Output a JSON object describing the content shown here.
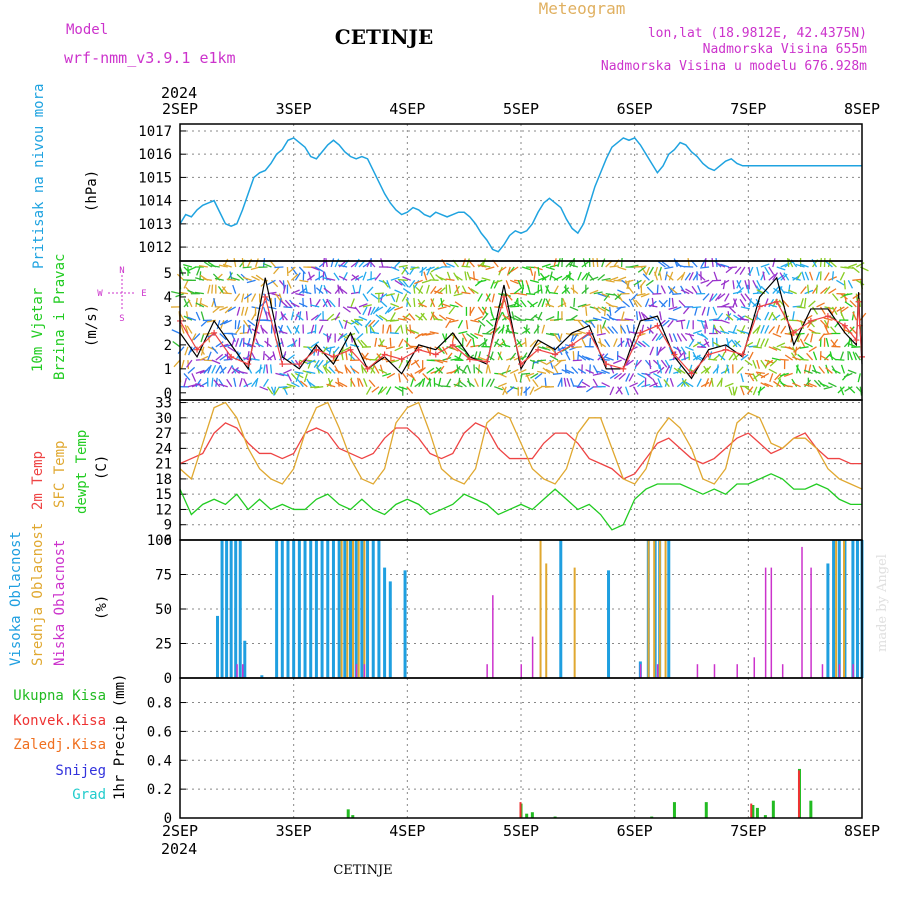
{
  "header": {
    "model_label": "Model",
    "model_name": "wrf-nmm_v3.9.1 e1km",
    "station": "CETINJE",
    "meteogram": "Meteogram",
    "lonlat": "lon,lat (18.9812E, 42.4375N)",
    "elevation": "Nadmorska Visina 655m",
    "elevation_model": "Nadmorska Visina u modelu 676.928m",
    "year_top": "2024",
    "year_bottom": "2024",
    "footer_station": "CETINJE",
    "credit": "made by Angel"
  },
  "colors": {
    "pressure": "#1fa3e0",
    "wind_green": "#22cc22",
    "temp_red": "#ee4444",
    "temp_orange": "#e0a830",
    "dewpt_green": "#22cc22",
    "high_cloud": "#1f9fe0",
    "mid_cloud": "#e0a830",
    "low_cloud": "#cc33cc",
    "total_precip": "#22bb22",
    "conv_precip": "#ee3333",
    "frozen_precip": "#f07020",
    "snow": "#3333dd",
    "hail": "#22cccc",
    "wind_compass": "#cc33cc"
  },
  "chart_data": [
    {
      "id": "pressure",
      "type": "line",
      "ylabel_color": "Pritisak na nivou mora",
      "ylabel_unit": "(hPa)",
      "x_categories": [
        "2SEP",
        "3SEP",
        "4SEP",
        "5SEP",
        "6SEP",
        "7SEP",
        "8SEP"
      ],
      "xlim": [
        0,
        6
      ],
      "ylim": [
        1011.4,
        1017.3
      ],
      "yticks": [
        1012,
        1013,
        1014,
        1015,
        1016,
        1017
      ],
      "x": [
        0.0,
        0.05,
        0.1,
        0.15,
        0.2,
        0.25,
        0.3,
        0.35,
        0.4,
        0.45,
        0.5,
        0.55,
        0.6,
        0.65,
        0.7,
        0.75,
        0.8,
        0.85,
        0.9,
        0.95,
        1.0,
        1.05,
        1.1,
        1.15,
        1.2,
        1.25,
        1.3,
        1.35,
        1.4,
        1.45,
        1.5,
        1.55,
        1.6,
        1.65,
        1.7,
        1.75,
        1.8,
        1.85,
        1.9,
        1.95,
        2.0,
        2.05,
        2.1,
        2.15,
        2.2,
        2.25,
        2.3,
        2.35,
        2.4,
        2.45,
        2.5,
        2.55,
        2.6,
        2.65,
        2.7,
        2.75,
        2.8,
        2.85,
        2.9,
        2.95,
        3.0,
        3.05,
        3.1,
        3.15,
        3.2,
        3.25,
        3.3,
        3.35,
        3.4,
        3.45,
        3.5,
        3.55,
        3.6,
        3.65,
        3.7,
        3.75,
        3.8,
        3.85,
        3.9,
        3.95,
        4.0,
        4.05,
        4.1,
        4.15,
        4.2,
        4.25,
        4.3,
        4.35,
        4.4,
        4.45,
        4.5,
        4.55,
        4.6,
        4.65,
        4.7,
        4.75,
        4.8,
        4.85,
        4.9,
        4.95,
        5.0,
        5.05,
        5.1,
        5.15,
        5.2,
        5.25,
        5.3,
        5.35,
        5.4,
        5.45,
        5.5,
        5.55,
        5.6,
        5.65,
        5.7,
        5.75,
        5.8,
        5.85,
        5.9,
        5.95,
        6.0
      ],
      "values": [
        1013.0,
        1013.4,
        1013.3,
        1013.6,
        1013.8,
        1013.9,
        1014.0,
        1013.5,
        1013.0,
        1012.9,
        1013.0,
        1013.6,
        1014.3,
        1015.0,
        1015.2,
        1015.3,
        1015.6,
        1016.0,
        1016.2,
        1016.6,
        1016.7,
        1016.5,
        1016.3,
        1015.9,
        1015.8,
        1016.1,
        1016.4,
        1016.6,
        1016.4,
        1016.1,
        1015.9,
        1015.8,
        1015.9,
        1015.8,
        1015.3,
        1014.8,
        1014.3,
        1013.9,
        1013.6,
        1013.4,
        1013.5,
        1013.7,
        1013.6,
        1013.4,
        1013.3,
        1013.5,
        1013.4,
        1013.3,
        1013.4,
        1013.5,
        1013.5,
        1013.3,
        1013.0,
        1012.6,
        1012.3,
        1011.9,
        1011.8,
        1012.1,
        1012.5,
        1012.7,
        1012.6,
        1012.7,
        1013.0,
        1013.5,
        1013.9,
        1014.1,
        1013.9,
        1013.7,
        1013.2,
        1012.8,
        1012.6,
        1013.0,
        1013.8,
        1014.6,
        1015.2,
        1015.8,
        1016.3,
        1016.5,
        1016.7,
        1016.6,
        1016.7,
        1016.4,
        1016.0,
        1015.6,
        1015.2,
        1015.5,
        1016.0,
        1016.2,
        1016.5,
        1016.4,
        1016.1,
        1015.9,
        1015.6,
        1015.4,
        1015.3,
        1015.5,
        1015.7,
        1015.8,
        1015.6,
        1015.5,
        1015.5,
        1015.5,
        1015.5,
        1015.5,
        1015.5,
        1015.5,
        1015.5,
        1015.5,
        1015.5,
        1015.5,
        1015.5,
        1015.5,
        1015.5,
        1015.5,
        1015.5,
        1015.5,
        1015.5,
        1015.5,
        1015.5,
        1015.5,
        1015.5
      ]
    },
    {
      "id": "wind",
      "type": "line",
      "ylabel_color": "10m Vjetar",
      "ylabel_color2": "Brzina i Pravac",
      "ylabel_unit": "(m/s)",
      "compass": "N S W E",
      "ylim": [
        -0.3,
        5.5
      ],
      "yticks": [
        0,
        1,
        2,
        3,
        4,
        5
      ],
      "series": [
        {
          "label_key": "black",
          "values": [
            2.5,
            1.5,
            3.0,
            2.0,
            1.0,
            4.8,
            1.5,
            1.0,
            2.0,
            1.2,
            2.5,
            1.0,
            1.5,
            0.8,
            2.0,
            1.8,
            2.5,
            1.5,
            1.2,
            4.5,
            1.0,
            2.2,
            1.8,
            2.5,
            2.8,
            1.0,
            1.0,
            3.0,
            3.2,
            1.5,
            0.6,
            1.8,
            2.0,
            1.5,
            4.0,
            4.8,
            2.0,
            3.5,
            3.5,
            2.5,
            2.0,
            4.2,
            3.0,
            1.2
          ],
          "x": [
            0.0,
            0.15,
            0.3,
            0.45,
            0.6,
            0.75,
            0.9,
            1.05,
            1.2,
            1.35,
            1.5,
            1.65,
            1.8,
            1.95,
            2.1,
            2.25,
            2.4,
            2.55,
            2.7,
            2.85,
            3.0,
            3.15,
            3.3,
            3.45,
            3.6,
            3.75,
            3.9,
            4.05,
            4.2,
            4.35,
            4.5,
            4.65,
            4.8,
            4.95,
            5.1,
            5.25,
            5.4,
            5.55,
            5.7,
            5.85,
            5.95,
            5.97,
            5.98,
            6.0
          ]
        },
        {
          "label_key": "red",
          "values": [
            3.0,
            1.8,
            2.5,
            1.5,
            1.2,
            4.0,
            1.2,
            1.2,
            1.8,
            1.5,
            1.8,
            1.0,
            1.6,
            1.4,
            1.8,
            1.6,
            2.0,
            1.4,
            1.3,
            4.0,
            1.2,
            1.8,
            1.6,
            2.0,
            2.5,
            1.2,
            1.0,
            2.5,
            2.8,
            1.6,
            0.8,
            1.6,
            1.8,
            1.6,
            3.6,
            3.8,
            2.5,
            3.0,
            3.2,
            2.8,
            2.2,
            3.8,
            2.8,
            1.5
          ],
          "x": [
            0.0,
            0.15,
            0.3,
            0.45,
            0.6,
            0.75,
            0.9,
            1.05,
            1.2,
            1.35,
            1.5,
            1.65,
            1.8,
            1.95,
            2.1,
            2.25,
            2.4,
            2.55,
            2.7,
            2.85,
            3.0,
            3.15,
            3.3,
            3.45,
            3.6,
            3.75,
            3.9,
            4.05,
            4.2,
            4.35,
            4.5,
            4.65,
            4.8,
            4.95,
            5.1,
            5.25,
            5.4,
            5.55,
            5.7,
            5.85,
            5.95,
            5.97,
            5.98,
            6.0
          ]
        }
      ]
    },
    {
      "id": "temperature",
      "type": "line",
      "ylabel_red": "2m Temp",
      "ylabel_orange": "SFC Temp",
      "ylabel_green": "dewpt Temp",
      "ylabel_unit": "(C)",
      "ylim": [
        6,
        33.5
      ],
      "yticks": [
        6,
        9,
        12,
        15,
        18,
        21,
        24,
        27,
        30,
        33
      ],
      "x": [
        0.0,
        0.1,
        0.2,
        0.3,
        0.4,
        0.5,
        0.6,
        0.7,
        0.8,
        0.9,
        1.0,
        1.1,
        1.2,
        1.3,
        1.4,
        1.5,
        1.6,
        1.7,
        1.8,
        1.9,
        2.0,
        2.1,
        2.2,
        2.3,
        2.4,
        2.5,
        2.6,
        2.7,
        2.8,
        2.9,
        3.0,
        3.1,
        3.2,
        3.3,
        3.4,
        3.5,
        3.6,
        3.7,
        3.8,
        3.9,
        4.0,
        4.1,
        4.2,
        4.3,
        4.4,
        4.5,
        4.6,
        4.7,
        4.8,
        4.9,
        5.0,
        5.1,
        5.2,
        5.3,
        5.4,
        5.5,
        5.6,
        5.7,
        5.8,
        5.9,
        6.0
      ],
      "series": [
        {
          "key": "t2m",
          "values": [
            21,
            22,
            23,
            27,
            29,
            28,
            25,
            23,
            23,
            22,
            23,
            27,
            28,
            27,
            24,
            23,
            22,
            23,
            26,
            28,
            28,
            26,
            23,
            22,
            23,
            27,
            29,
            28,
            24,
            22,
            22,
            22,
            25,
            27,
            27,
            25,
            22,
            21,
            20,
            18,
            19,
            22,
            25,
            26,
            24,
            22,
            21,
            22,
            24,
            26,
            27,
            25,
            23,
            24,
            26,
            27,
            24,
            22,
            22,
            21,
            21
          ]
        },
        {
          "key": "sfc",
          "values": [
            20,
            18,
            25,
            32,
            33,
            30,
            24,
            20,
            18,
            17,
            20,
            27,
            32,
            33,
            28,
            22,
            18,
            17,
            20,
            29,
            32,
            33,
            27,
            20,
            18,
            17,
            20,
            29,
            31,
            30,
            25,
            20,
            18,
            17,
            20,
            27,
            30,
            30,
            24,
            18,
            17,
            20,
            27,
            30,
            28,
            24,
            18,
            17,
            20,
            29,
            31,
            30,
            25,
            24,
            26,
            26,
            24,
            20,
            18,
            17,
            16
          ]
        },
        {
          "key": "dewpt",
          "values": [
            16,
            11,
            13,
            14,
            13,
            15,
            12,
            14,
            12,
            13,
            12,
            12,
            14,
            15,
            13,
            12,
            14,
            12,
            11,
            13,
            14,
            13,
            11,
            12,
            13,
            15,
            14,
            13,
            11,
            12,
            13,
            12,
            14,
            16,
            14,
            12,
            13,
            11,
            8,
            9,
            14,
            16,
            17,
            17,
            17,
            16,
            15,
            16,
            15,
            17,
            17,
            18,
            19,
            18,
            16,
            16,
            17,
            16,
            14,
            13,
            13
          ]
        }
      ]
    },
    {
      "id": "clouds",
      "type": "bar",
      "ylabel_high": "Visoka Oblacnost",
      "ylabel_mid": "Srednja Oblacnost",
      "ylabel_low": "Niska Oblacnost",
      "ylabel_unit": "(%)",
      "ylim": [
        0,
        100
      ],
      "yticks": [
        0,
        25,
        50,
        75,
        100
      ],
      "high": [
        [
          0.33,
          45
        ],
        [
          0.37,
          100
        ],
        [
          0.41,
          100
        ],
        [
          0.45,
          100
        ],
        [
          0.49,
          100
        ],
        [
          0.53,
          100
        ],
        [
          0.57,
          27
        ],
        [
          0.72,
          2
        ],
        [
          0.85,
          100
        ],
        [
          0.9,
          100
        ],
        [
          0.95,
          100
        ],
        [
          1.0,
          100
        ],
        [
          1.05,
          100
        ],
        [
          1.1,
          100
        ],
        [
          1.15,
          100
        ],
        [
          1.2,
          100
        ],
        [
          1.25,
          100
        ],
        [
          1.3,
          100
        ],
        [
          1.35,
          100
        ],
        [
          1.4,
          100
        ],
        [
          1.45,
          100
        ],
        [
          1.5,
          100
        ],
        [
          1.55,
          100
        ],
        [
          1.6,
          100
        ],
        [
          1.65,
          100
        ],
        [
          1.7,
          100
        ],
        [
          1.75,
          100
        ],
        [
          1.8,
          80
        ],
        [
          1.85,
          70
        ],
        [
          1.98,
          78
        ],
        [
          3.35,
          100
        ],
        [
          3.77,
          78
        ],
        [
          4.05,
          12
        ],
        [
          4.12,
          100
        ],
        [
          4.18,
          100
        ],
        [
          4.22,
          100
        ],
        [
          4.3,
          100
        ],
        [
          5.7,
          83
        ],
        [
          5.75,
          100
        ],
        [
          5.8,
          100
        ],
        [
          5.85,
          100
        ],
        [
          5.92,
          100
        ],
        [
          5.96,
          100
        ],
        [
          6.0,
          100
        ]
      ],
      "mid": [
        [
          1.4,
          100
        ],
        [
          1.45,
          100
        ],
        [
          1.5,
          100
        ],
        [
          1.55,
          100
        ],
        [
          1.6,
          100
        ],
        [
          3.15,
          100
        ],
        [
          3.2,
          83
        ],
        [
          3.45,
          80
        ],
        [
          4.1,
          100
        ],
        [
          4.15,
          100
        ],
        [
          4.2,
          100
        ],
        [
          4.25,
          100
        ],
        [
          5.75,
          100
        ],
        [
          5.82,
          100
        ]
      ],
      "low": [
        [
          0.5,
          10
        ],
        [
          0.55,
          10
        ],
        [
          1.55,
          10
        ],
        [
          1.62,
          10
        ],
        [
          2.7,
          10
        ],
        [
          2.75,
          60
        ],
        [
          3.0,
          10
        ],
        [
          3.1,
          30
        ],
        [
          4.05,
          10
        ],
        [
          4.2,
          10
        ],
        [
          4.55,
          10
        ],
        [
          4.7,
          10
        ],
        [
          4.9,
          10
        ],
        [
          5.05,
          15
        ],
        [
          5.15,
          80
        ],
        [
          5.2,
          80
        ],
        [
          5.3,
          10
        ],
        [
          5.47,
          95
        ],
        [
          5.55,
          80
        ],
        [
          5.65,
          10
        ],
        [
          5.8,
          10
        ],
        [
          5.92,
          10
        ]
      ]
    },
    {
      "id": "precip",
      "type": "bar",
      "ylabel": "1hr Precip (mm)",
      "legend": [
        "Ukupna Kisa",
        "Konvek.Kisa",
        "Zaledj.Kisa",
        "Snijeg",
        "Grad"
      ],
      "ylim": [
        0,
        0.97
      ],
      "yticks": [
        0,
        0.2,
        0.4,
        0.6,
        0.8
      ],
      "ytick_labels": [
        "0",
        "0.2",
        "0.4",
        "0.6",
        "0.8"
      ],
      "total": [
        [
          1.48,
          0.06
        ],
        [
          1.52,
          0.02
        ],
        [
          3.0,
          0.1
        ],
        [
          3.05,
          0.03
        ],
        [
          3.1,
          0.04
        ],
        [
          3.3,
          0.01
        ],
        [
          4.15,
          0.01
        ],
        [
          4.35,
          0.11
        ],
        [
          4.63,
          0.11
        ],
        [
          5.04,
          0.09
        ],
        [
          5.08,
          0.07
        ],
        [
          5.15,
          0.02
        ],
        [
          5.22,
          0.12
        ],
        [
          5.45,
          0.34
        ],
        [
          5.55,
          0.12
        ]
      ],
      "conv": [
        [
          3.0,
          0.11
        ],
        [
          5.03,
          0.1
        ],
        [
          5.45,
          0.33
        ]
      ]
    }
  ]
}
